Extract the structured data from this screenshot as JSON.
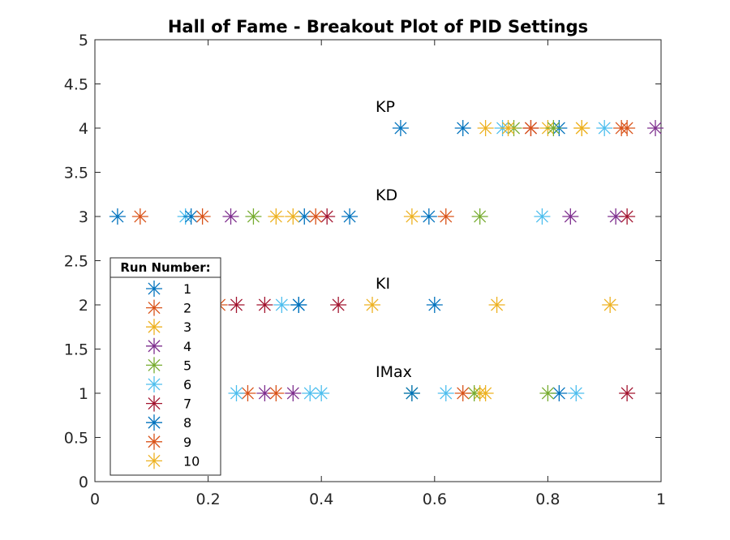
{
  "chart_data": {
    "type": "scatter",
    "title": "Hall of Fame - Breakout Plot of PID Settings",
    "xlabel": "",
    "ylabel": "",
    "xlim": [
      0,
      1
    ],
    "ylim": [
      0,
      5
    ],
    "x_ticks": [
      "0",
      "0.2",
      "0.4",
      "0.6",
      "0.8",
      "1"
    ],
    "x_tick_values": [
      0,
      0.2,
      0.4,
      0.6,
      0.8,
      1
    ],
    "y_ticks": [
      "0",
      "0.5",
      "1",
      "1.5",
      "2",
      "2.5",
      "3",
      "3.5",
      "4",
      "4.5",
      "5"
    ],
    "y_tick_values": [
      0,
      0.5,
      1,
      1.5,
      2,
      2.5,
      3,
      3.5,
      4,
      4.5,
      5
    ],
    "grid": false,
    "marker": "asterisk",
    "parameter_labels": [
      {
        "text": "KP",
        "x": 0.5,
        "y": 4.25
      },
      {
        "text": "KD",
        "x": 0.5,
        "y": 3.25
      },
      {
        "text": "KI",
        "x": 0.5,
        "y": 2.25
      },
      {
        "text": "IMax",
        "x": 0.5,
        "y": 1.25
      }
    ],
    "legend": {
      "title": "Run Number:",
      "placement": "lower-left",
      "entries": [
        "1",
        "2",
        "3",
        "4",
        "5",
        "6",
        "7",
        "8",
        "9",
        "10"
      ]
    },
    "series": [
      {
        "name": "1",
        "color": "#0072BD",
        "points": [
          [
            0.54,
            4
          ],
          [
            0.82,
            4
          ],
          [
            0.04,
            3
          ],
          [
            0.59,
            3
          ],
          [
            0.36,
            2
          ],
          [
            0.82,
            1
          ]
        ]
      },
      {
        "name": "2",
        "color": "#D95319",
        "points": [
          [
            0.93,
            4
          ],
          [
            0.08,
            3
          ],
          [
            0.62,
            3
          ],
          [
            0.22,
            2
          ],
          [
            0.27,
            1
          ]
        ]
      },
      {
        "name": "3",
        "color": "#EDB120",
        "points": [
          [
            0.69,
            4
          ],
          [
            0.8,
            4
          ],
          [
            0.86,
            4
          ],
          [
            0.32,
            3
          ],
          [
            0.56,
            3
          ],
          [
            0.49,
            2
          ],
          [
            0.71,
            2
          ],
          [
            0.91,
            2
          ],
          [
            0.68,
            1
          ]
        ]
      },
      {
        "name": "4",
        "color": "#7E2F8E",
        "points": [
          [
            0.99,
            4
          ],
          [
            0.24,
            3
          ],
          [
            0.84,
            3
          ],
          [
            0.92,
            3
          ],
          [
            0.3,
            1
          ],
          [
            0.35,
            1
          ]
        ]
      },
      {
        "name": "5",
        "color": "#77AC30",
        "points": [
          [
            0.74,
            4
          ],
          [
            0.81,
            4
          ],
          [
            0.28,
            3
          ],
          [
            0.68,
            3
          ],
          [
            0.56,
            1
          ],
          [
            0.67,
            1
          ],
          [
            0.8,
            1
          ]
        ]
      },
      {
        "name": "6",
        "color": "#4DBEEE",
        "points": [
          [
            0.72,
            4
          ],
          [
            0.9,
            4
          ],
          [
            0.16,
            3
          ],
          [
            0.79,
            3
          ],
          [
            0.33,
            2
          ],
          [
            0.25,
            1
          ],
          [
            0.38,
            1
          ],
          [
            0.4,
            1
          ],
          [
            0.62,
            1
          ],
          [
            0.85,
            1
          ]
        ]
      },
      {
        "name": "7",
        "color": "#A2142F",
        "points": [
          [
            0.77,
            4
          ],
          [
            0.41,
            3
          ],
          [
            0.94,
            3
          ],
          [
            0.25,
            2
          ],
          [
            0.3,
            2
          ],
          [
            0.43,
            2
          ],
          [
            0.94,
            1
          ]
        ]
      },
      {
        "name": "8",
        "color": "#0072BD",
        "points": [
          [
            0.65,
            4
          ],
          [
            0.17,
            3
          ],
          [
            0.37,
            3
          ],
          [
            0.45,
            3
          ],
          [
            0.36,
            2
          ],
          [
            0.6,
            2
          ],
          [
            0.56,
            1
          ]
        ]
      },
      {
        "name": "9",
        "color": "#D95319",
        "points": [
          [
            0.77,
            4
          ],
          [
            0.94,
            4
          ],
          [
            0.19,
            3
          ],
          [
            0.39,
            3
          ],
          [
            0.32,
            1
          ],
          [
            0.65,
            1
          ]
        ]
      },
      {
        "name": "10",
        "color": "#EDB120",
        "points": [
          [
            0.73,
            4
          ],
          [
            0.86,
            4
          ],
          [
            0.35,
            3
          ],
          [
            0.69,
            1
          ]
        ]
      }
    ]
  }
}
